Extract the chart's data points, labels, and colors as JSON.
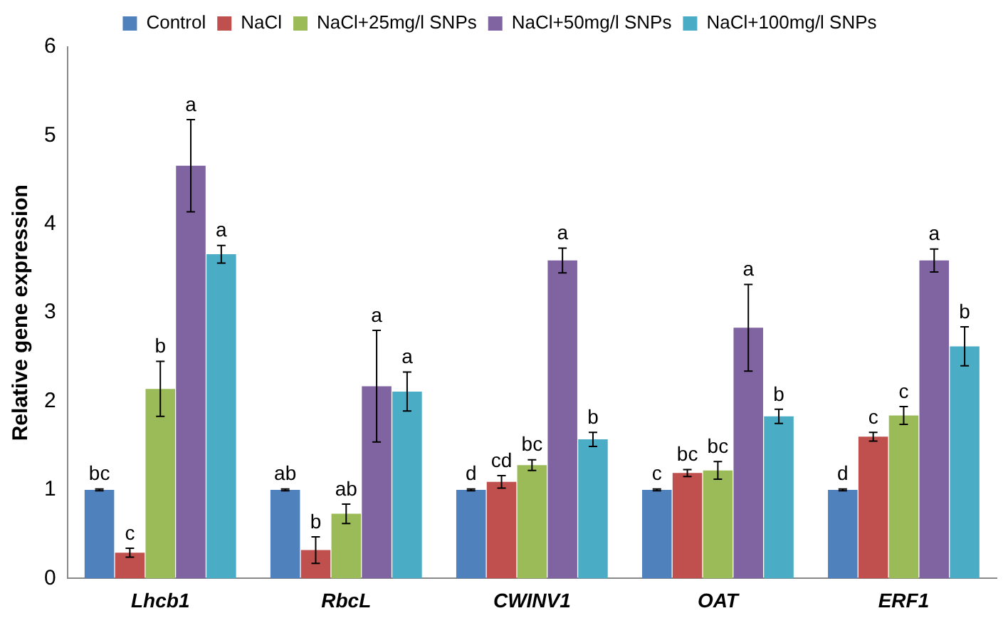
{
  "chart_data": {
    "type": "bar",
    "ylabel": "Relative gene expression",
    "categories": [
      "Lhcb1",
      "RbcL",
      "CWINV1",
      "OAT",
      "ERF1"
    ],
    "ylim": [
      0,
      6
    ],
    "yticks": [
      0,
      1,
      2,
      3,
      4,
      5,
      6
    ],
    "grid": false,
    "legend": "top",
    "series": [
      {
        "name": "Control",
        "color": "#4f81bd",
        "values": [
          1,
          1,
          1,
          1,
          1
        ],
        "errors": [
          0.01,
          0.01,
          0.01,
          0.01,
          0.01
        ],
        "value_labels": [
          "bc",
          "ab",
          "d",
          "c",
          "d"
        ]
      },
      {
        "name": "NaCl",
        "color": "#c0504d",
        "values": [
          0.29,
          0.32,
          1.09,
          1.19,
          1.6
        ],
        "errors": [
          0.05,
          0.15,
          0.07,
          0.04,
          0.05
        ],
        "value_labels": [
          "c",
          "b",
          "cd",
          "bc",
          "c"
        ]
      },
      {
        "name": "NaCl+25mg/l SNPs",
        "color": "#9bbb59",
        "values": [
          2.14,
          0.73,
          1.28,
          1.22,
          1.84
        ],
        "errors": [
          0.31,
          0.11,
          0.06,
          0.1,
          0.1
        ],
        "value_labels": [
          "b",
          "ab",
          "bc",
          "bc",
          "c"
        ]
      },
      {
        "name": "NaCl+50mg/l SNPs",
        "color": "#8064a2",
        "values": [
          4.66,
          2.17,
          3.59,
          2.83,
          3.59
        ],
        "errors": [
          0.52,
          0.63,
          0.14,
          0.49,
          0.13
        ],
        "value_labels": [
          "a",
          "a",
          "a",
          "a",
          "a"
        ]
      },
      {
        "name": "NaCl+100mg/l SNPs",
        "color": "#4bacc6",
        "values": [
          3.66,
          2.11,
          1.57,
          1.83,
          2.62
        ],
        "errors": [
          0.1,
          0.22,
          0.08,
          0.08,
          0.22
        ],
        "value_labels": [
          "a",
          "a",
          "b",
          "b",
          "b"
        ]
      }
    ]
  }
}
